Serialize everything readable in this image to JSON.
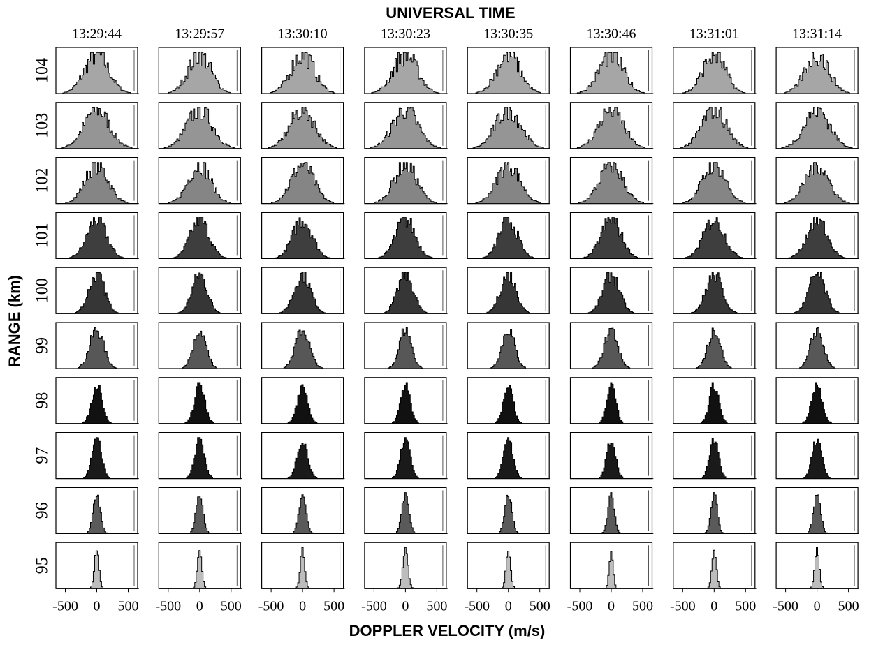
{
  "chart_data": {
    "type": "histogram-grid",
    "title": "UNIVERSAL TIME",
    "x_label": "DOPPLER VELOCITY (m/s)",
    "y_label": "RANGE (km)",
    "categories": [
      "13:29:44",
      "13:29:57",
      "13:30:10",
      "13:30:23",
      "13:30:35",
      "13:30:46",
      "13:31:01",
      "13:31:14"
    ],
    "xlim": [
      -650,
      650
    ],
    "xticks": [
      -500,
      0,
      500
    ],
    "series": [
      {
        "name": "104",
        "color": "#a6a6a6",
        "values": [
          190,
          180,
          185,
          190,
          185,
          190,
          175,
          185
        ]
      },
      {
        "name": "103",
        "color": "#959595",
        "values": [
          200,
          200,
          195,
          200,
          200,
          195,
          195,
          200
        ]
      },
      {
        "name": "102",
        "color": "#858585",
        "values": [
          180,
          175,
          180,
          180,
          185,
          185,
          180,
          185
        ]
      },
      {
        "name": "101",
        "color": "#3e3e3e",
        "values": [
          155,
          150,
          155,
          155,
          145,
          160,
          165,
          160
        ]
      },
      {
        "name": "100",
        "color": "#363636",
        "values": [
          125,
          120,
          130,
          125,
          125,
          130,
          130,
          130
        ]
      },
      {
        "name": "99",
        "color": "#575757",
        "values": [
          110,
          100,
          110,
          95,
          100,
          105,
          100,
          100
        ]
      },
      {
        "name": "98",
        "color": "#111111",
        "values": [
          80,
          80,
          80,
          75,
          75,
          70,
          75,
          80
        ]
      },
      {
        "name": "97",
        "color": "#1a1a1a",
        "values": [
          75,
          75,
          80,
          75,
          75,
          70,
          70,
          75
        ]
      },
      {
        "name": "96",
        "color": "#5a5a5a",
        "values": [
          55,
          55,
          55,
          55,
          55,
          50,
          50,
          55
        ]
      },
      {
        "name": "95",
        "color": "#bdbdbd",
        "values": [
          35,
          35,
          35,
          40,
          35,
          30,
          35,
          35
        ]
      }
    ]
  }
}
